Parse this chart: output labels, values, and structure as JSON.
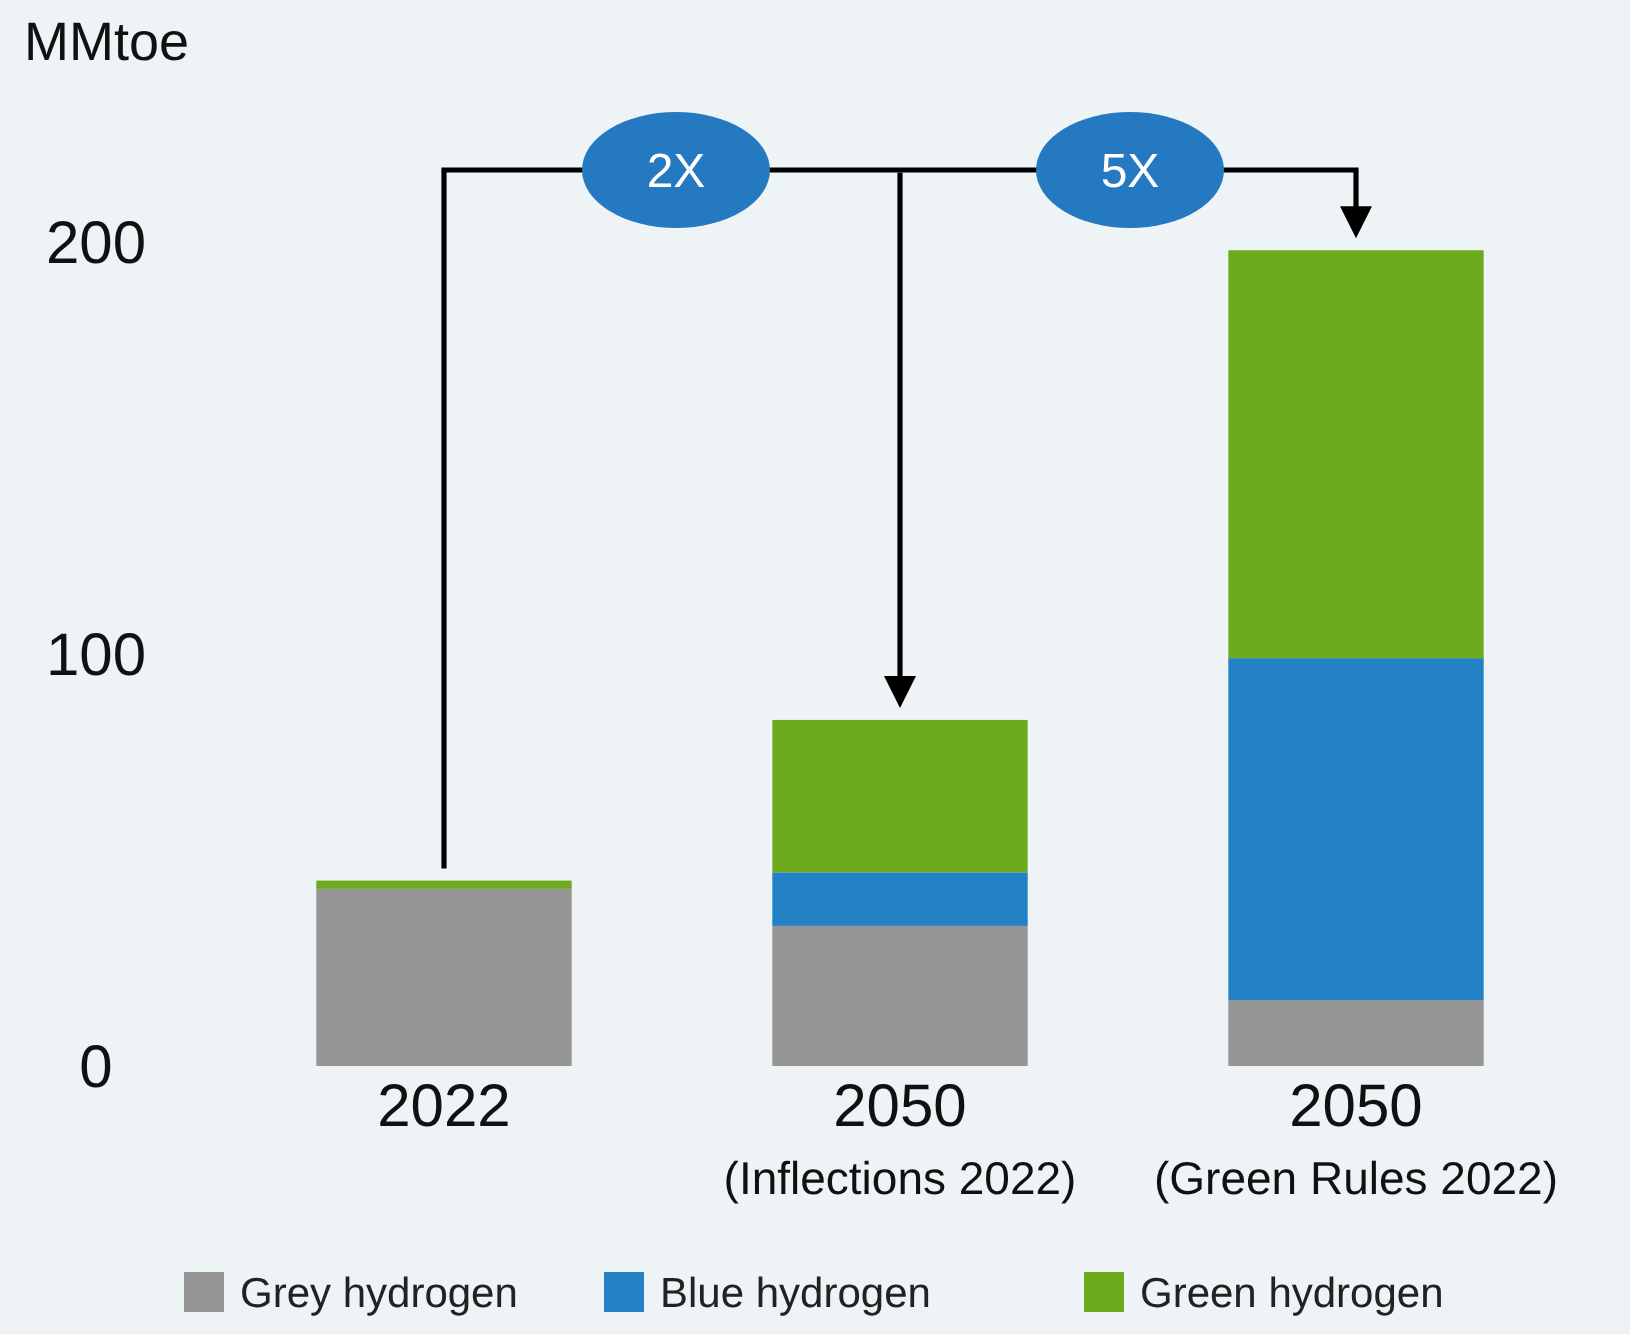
{
  "chart_data": {
    "type": "bar",
    "stacked": true,
    "ylabel": "MMtoe",
    "categories": [
      "2022",
      "2050\n(Inflections 2022)",
      "2050\n(Green Rules 2022)"
    ],
    "series": [
      {
        "name": "Grey hydrogen",
        "color": "#969696",
        "values": [
          43,
          34,
          16
        ]
      },
      {
        "name": "Blue hydrogen",
        "color": "#2581c5",
        "values": [
          0,
          13,
          83
        ]
      },
      {
        "name": "Green hydrogen",
        "color": "#6eaa1e",
        "values": [
          2,
          37,
          99
        ]
      }
    ],
    "ylim": [
      0,
      200
    ],
    "yticks": [
      0,
      100,
      200
    ],
    "grid": false,
    "legend": "bottom",
    "annotations": [
      "2X",
      "5X"
    ]
  }
}
